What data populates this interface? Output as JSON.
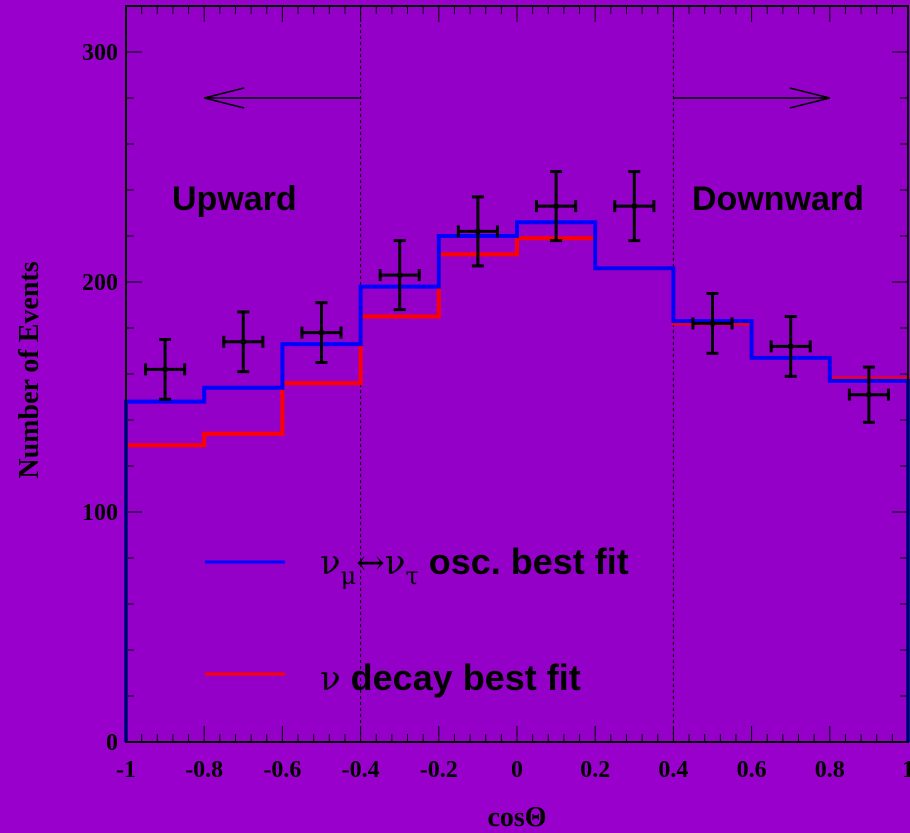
{
  "chart_data": {
    "type": "line",
    "xlabel": "cosΘ",
    "ylabel": "Number of Events",
    "xlim": [
      -1,
      1
    ],
    "ylim": [
      0,
      320
    ],
    "x_ticks": [
      "-1",
      "-0.8",
      "-0.6",
      "-0.4",
      "-0.2",
      "0",
      "0.2",
      "0.4",
      "0.6",
      "0.8",
      "1"
    ],
    "y_ticks": [
      "0",
      "100",
      "200",
      "300"
    ],
    "bin_edges": [
      -1,
      -0.8,
      -0.6,
      -0.4,
      -0.2,
      0,
      0.2,
      0.4,
      0.6,
      0.8,
      1
    ],
    "series": [
      {
        "name": "osc. best fit",
        "legend_prefix": "ν",
        "legend_sub1": "μ",
        "legend_arrow": "↔",
        "legend_nu2": "ν",
        "legend_sub2": "τ",
        "legend_suffix": " osc. best fit",
        "color": "#0000ff",
        "values": [
          148,
          154,
          173,
          198,
          220,
          226,
          206,
          183,
          167,
          157
        ]
      },
      {
        "name": "ν decay best fit",
        "legend_prefix": "ν",
        "legend_suffix": " decay best fit",
        "color": "#ff0000",
        "values": [
          129,
          134,
          156,
          185,
          212,
          219,
          206,
          182,
          167,
          158
        ]
      }
    ],
    "data_points": {
      "x": [
        -0.9,
        -0.7,
        -0.5,
        -0.3,
        -0.1,
        0.1,
        0.3,
        0.5,
        0.7,
        0.9
      ],
      "y": [
        162,
        174,
        178,
        203,
        222,
        233,
        233,
        182,
        172,
        151
      ],
      "yerr": [
        13,
        13,
        13,
        15,
        15,
        15,
        15,
        13,
        13,
        12
      ],
      "xerr": 0.05
    },
    "dividers": [
      -0.4,
      0.4
    ],
    "annotations": {
      "upward": "Upward",
      "downward": "Downward"
    }
  }
}
